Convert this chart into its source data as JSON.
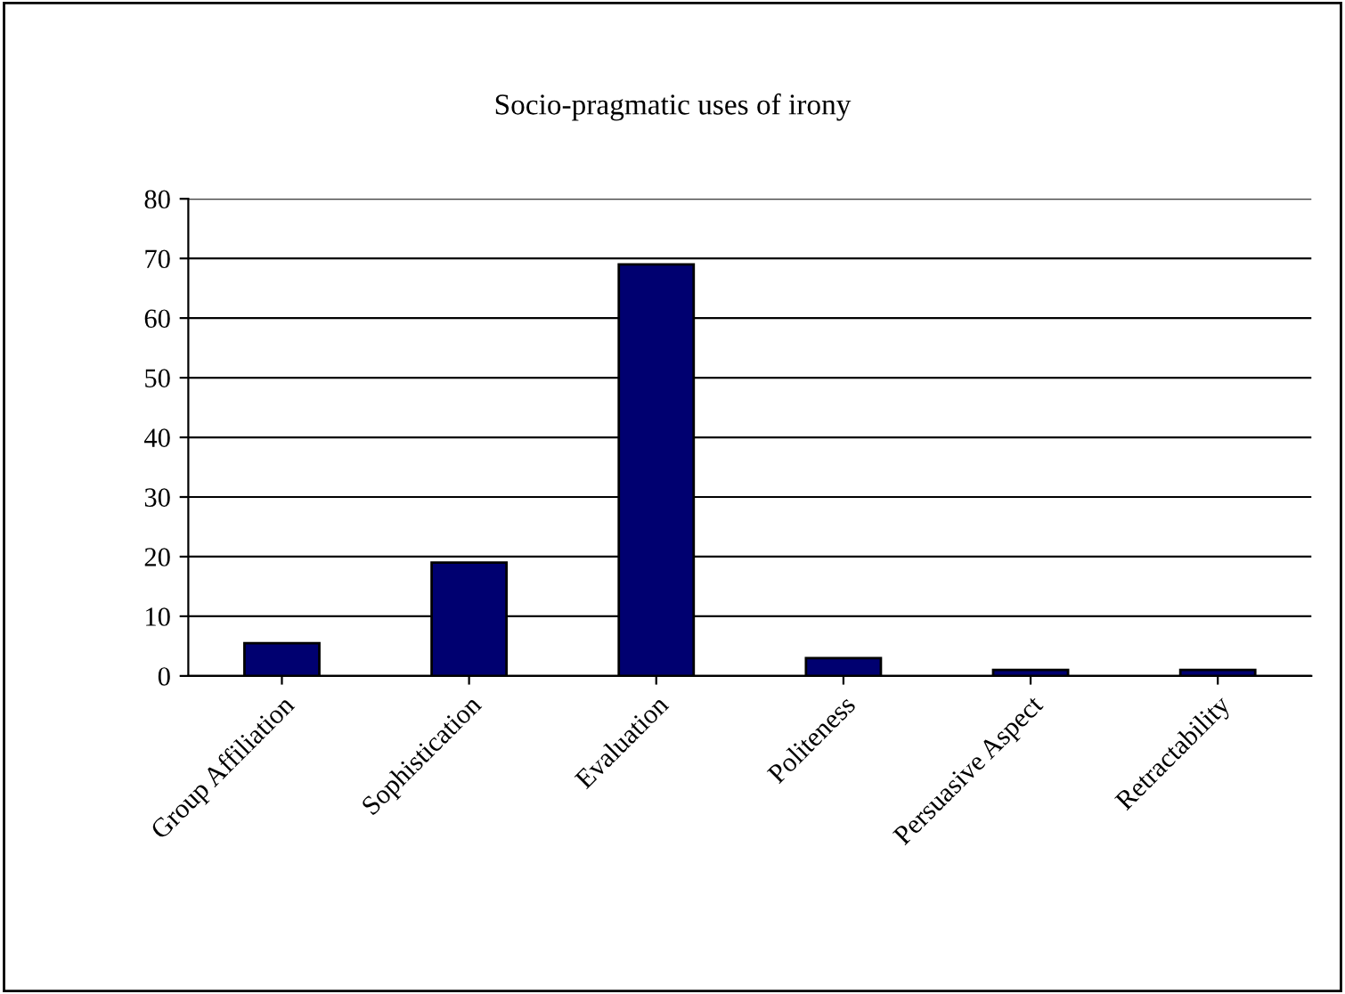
{
  "chart_data": {
    "type": "bar",
    "title": "Socio-pragmatic uses of irony",
    "categories": [
      "Group Affiliation",
      "Sophistication",
      "Evaluation",
      "Politeness",
      "Persuasive Aspect",
      "Retractability"
    ],
    "values": [
      5.5,
      19,
      69,
      3,
      1,
      1
    ],
    "color": "#000070",
    "ylim": [
      0,
      80
    ],
    "yticks": [
      0,
      10,
      20,
      30,
      40,
      50,
      60,
      70,
      80
    ],
    "grid": "y",
    "legend": false
  }
}
